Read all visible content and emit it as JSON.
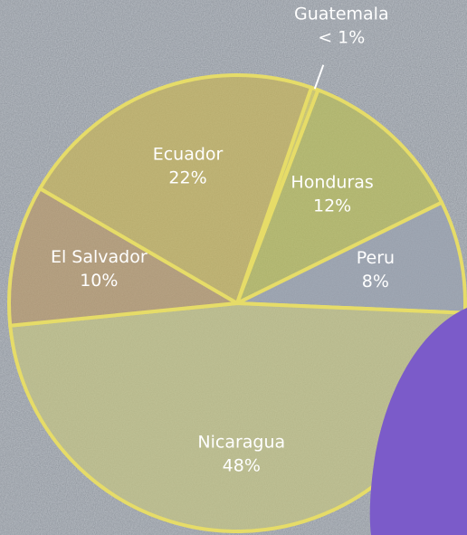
{
  "chart_data": {
    "type": "pie",
    "categories": [
      "Guatemala",
      "Honduras",
      "Peru",
      "Nicaragua",
      "El Salvador",
      "Ecuador"
    ],
    "values": [
      0.5,
      12,
      8,
      48,
      10,
      22
    ],
    "value_labels": [
      "< 1%",
      "12%",
      "8%",
      "48%",
      "10%",
      "22%"
    ],
    "colors": [
      "#d8d060",
      "#b9bd5a",
      "#9aa2b0",
      "#c3c484",
      "#b89a6c",
      "#c6b45c"
    ]
  }
}
